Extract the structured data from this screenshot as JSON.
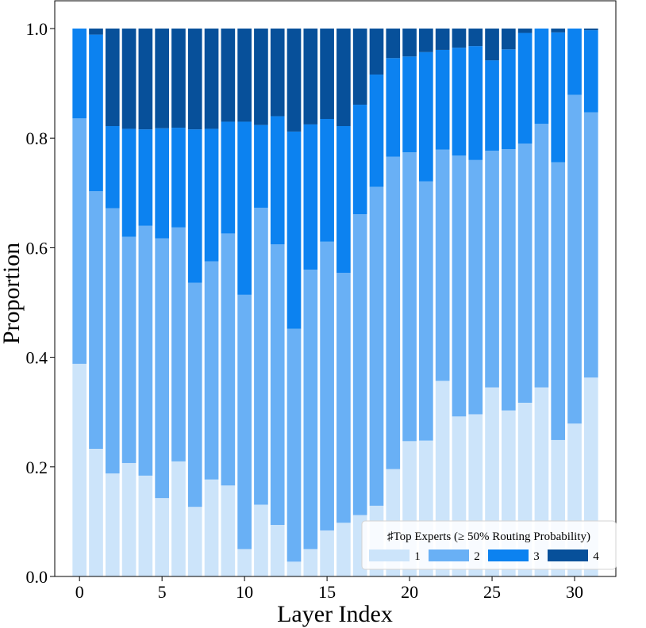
{
  "chart_data": {
    "type": "bar",
    "stacked": true,
    "title": "",
    "xlabel": "Layer Index",
    "ylabel": "Proportion",
    "xlim": [
      -1.5,
      32.5
    ],
    "ylim": [
      0,
      1.0
    ],
    "x_ticks": [
      0,
      5,
      10,
      15,
      20,
      25,
      30
    ],
    "x_tick_labels": [
      "0",
      "5",
      "10",
      "15",
      "20",
      "25",
      "30"
    ],
    "y_ticks": [
      0.0,
      0.2,
      0.4,
      0.6,
      0.8,
      1.0
    ],
    "y_tick_labels": [
      "0.0",
      "0.2",
      "0.4",
      "0.6",
      "0.8",
      "1.0"
    ],
    "categories": [
      0,
      1,
      2,
      3,
      4,
      5,
      6,
      7,
      8,
      9,
      10,
      11,
      12,
      13,
      14,
      15,
      16,
      17,
      18,
      19,
      20,
      21,
      22,
      23,
      24,
      25,
      26,
      27,
      28,
      29,
      30,
      31
    ],
    "legend": {
      "title": "♯Top Experts (≥ 50% Routing Probability)",
      "position": "lower-right",
      "ncol": 4
    },
    "series": [
      {
        "name": "1",
        "color": "#cce4fa",
        "values": [
          0.388,
          0.233,
          0.188,
          0.207,
          0.184,
          0.143,
          0.21,
          0.127,
          0.177,
          0.166,
          0.05,
          0.131,
          0.094,
          0.027,
          0.05,
          0.084,
          0.098,
          0.112,
          0.129,
          0.196,
          0.247,
          0.248,
          0.357,
          0.292,
          0.296,
          0.345,
          0.303,
          0.317,
          0.345,
          0.249,
          0.279,
          0.363
        ]
      },
      {
        "name": "2",
        "color": "#69b0f5",
        "values": [
          0.448,
          0.47,
          0.484,
          0.413,
          0.456,
          0.474,
          0.427,
          0.409,
          0.398,
          0.46,
          0.464,
          0.542,
          0.512,
          0.425,
          0.51,
          0.527,
          0.456,
          0.549,
          0.582,
          0.57,
          0.527,
          0.473,
          0.422,
          0.476,
          0.464,
          0.432,
          0.477,
          0.473,
          0.481,
          0.507,
          0.6,
          0.484
        ]
      },
      {
        "name": "3",
        "color": "#0c82f0",
        "values": [
          0.164,
          0.286,
          0.15,
          0.197,
          0.176,
          0.201,
          0.182,
          0.28,
          0.242,
          0.204,
          0.316,
          0.151,
          0.234,
          0.36,
          0.265,
          0.224,
          0.268,
          0.2,
          0.205,
          0.18,
          0.175,
          0.236,
          0.182,
          0.197,
          0.208,
          0.165,
          0.182,
          0.202,
          0.174,
          0.237,
          0.121,
          0.15
        ]
      },
      {
        "name": "4",
        "color": "#07509a",
        "values": [
          0.0,
          0.011,
          0.178,
          0.183,
          0.184,
          0.182,
          0.181,
          0.184,
          0.183,
          0.17,
          0.17,
          0.176,
          0.16,
          0.188,
          0.175,
          0.165,
          0.178,
          0.139,
          0.084,
          0.054,
          0.051,
          0.043,
          0.039,
          0.035,
          0.032,
          0.058,
          0.038,
          0.008,
          0.0,
          0.007,
          0.0,
          0.003
        ]
      }
    ]
  }
}
